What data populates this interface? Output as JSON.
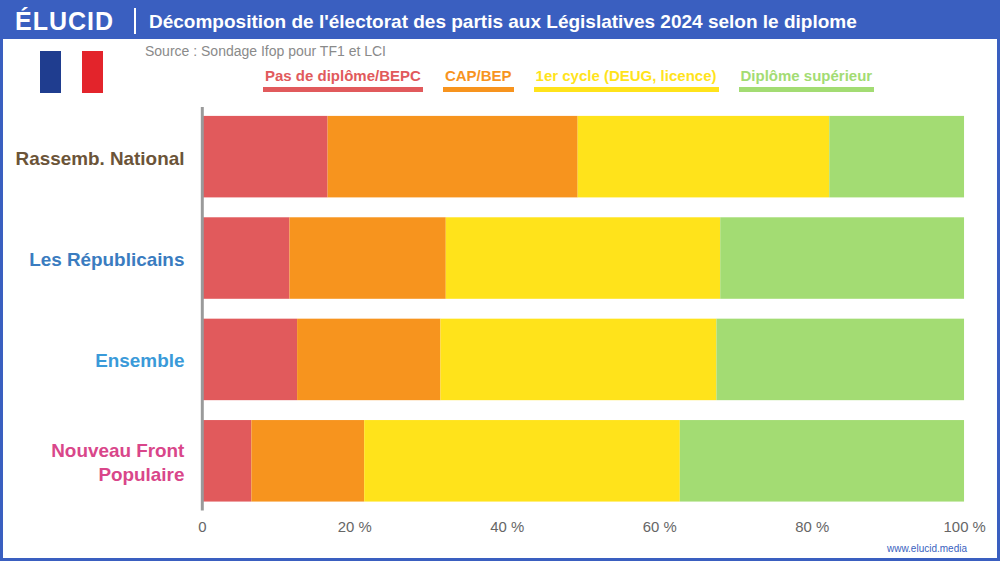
{
  "chart_data": {
    "type": "bar",
    "orientation": "horizontal",
    "stacked": true,
    "title": "Décomposition de l'électorat des partis aux Législatives 2024 selon le diplome",
    "subtitle": "Source : Sondage Ifop pour TF1 et LCI",
    "brand": "ÉLUCID",
    "footer": "www.elucid.media",
    "categories": [
      "Rassemb. National",
      "Les Républicains",
      "Ensemble",
      "Nouveau Front Populaire"
    ],
    "series": [
      {
        "name": "Pas de diplôme/BEPC",
        "color": "#e15a5c",
        "values": [
          16.5,
          11.5,
          12.5,
          6.5
        ]
      },
      {
        "name": "CAP/BEP",
        "color": "#f7941e",
        "values": [
          32.8,
          20.5,
          18.8,
          14.8
        ]
      },
      {
        "name": "1er cycle (DEUG, licence)",
        "color": "#ffe31b",
        "values": [
          33,
          36,
          36.2,
          41.4
        ]
      },
      {
        "name": "Diplôme supérieur",
        "color": "#a3dc73",
        "values": [
          17.7,
          32,
          32.5,
          37.3
        ]
      }
    ],
    "xlim": [
      0,
      100
    ],
    "xticks": [
      0,
      {
        "value": 20,
        "label": "20 %"
      },
      {
        "value": 40,
        "label": "40 %"
      },
      {
        "value": 60,
        "label": "60 %"
      },
      {
        "value": 80,
        "label": "80 %"
      },
      {
        "value": 100,
        "label": "100 %"
      }
    ],
    "grid": false,
    "legend": "top",
    "data_labels": false
  }
}
